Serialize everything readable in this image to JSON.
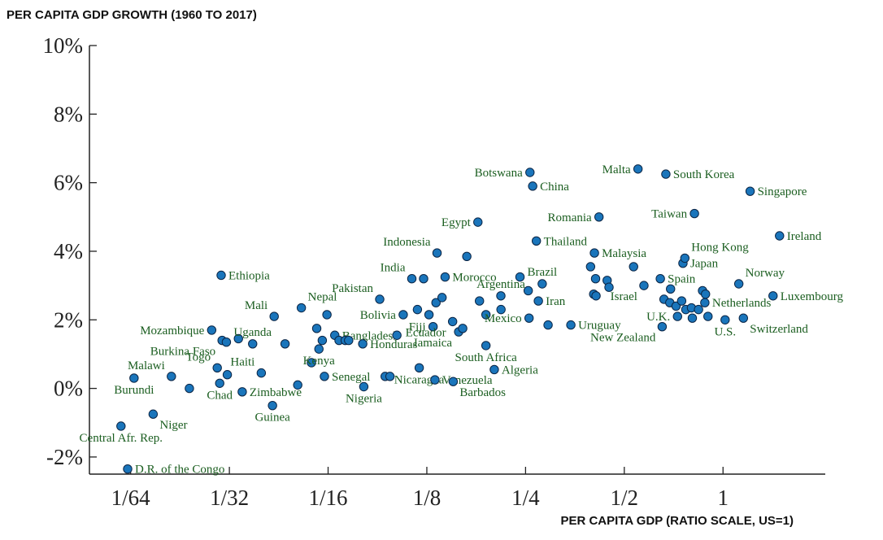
{
  "chart_data": {
    "type": "scatter",
    "title": "PER CAPITA GDP GROWTH (1960 TO 2017)",
    "xlabel": "PER CAPITA GDP (RATIO SCALE, US=1)",
    "ylabel": "",
    "x_scale": "log2",
    "xlim": [
      0.0117,
      2.05
    ],
    "ylim": [
      -2.5,
      10
    ],
    "x_ticks": [
      {
        "value": 0.015625,
        "label": "1/64"
      },
      {
        "value": 0.03125,
        "label": "1/32"
      },
      {
        "value": 0.0625,
        "label": "1/16"
      },
      {
        "value": 0.125,
        "label": "1/8"
      },
      {
        "value": 0.25,
        "label": "1/4"
      },
      {
        "value": 0.5,
        "label": "1/2"
      },
      {
        "value": 1,
        "label": "1"
      }
    ],
    "y_ticks": [
      {
        "value": -2,
        "label": "-2%"
      },
      {
        "value": 0,
        "label": "0%"
      },
      {
        "value": 2,
        "label": "2%"
      },
      {
        "value": 4,
        "label": "4%"
      },
      {
        "value": 6,
        "label": "6%"
      },
      {
        "value": 8,
        "label": "8%"
      },
      {
        "value": 10,
        "label": "10%"
      }
    ],
    "grid": false,
    "marker_color": "#1a75bb",
    "marker_edge_color": "#0b2545",
    "label_color": "#1b5e20",
    "points": [
      {
        "x": 0.0146,
        "y": -1.1,
        "label": "Central Afr. Rep.",
        "label_pos": "below"
      },
      {
        "x": 0.0153,
        "y": -2.35,
        "label": "D.R. of the Congo",
        "label_pos": "right"
      },
      {
        "x": 0.016,
        "y": 0.3,
        "label": "Burundi",
        "label_pos": "below"
      },
      {
        "x": 0.0183,
        "y": -0.75,
        "label": "Niger",
        "label_pos": "below-right"
      },
      {
        "x": 0.0208,
        "y": 0.35,
        "label": "Malawi",
        "label_pos": "above-left"
      },
      {
        "x": 0.0236,
        "y": 0.0,
        "label": "",
        "label_pos": ""
      },
      {
        "x": 0.0276,
        "y": 1.7,
        "label": "Mozambique",
        "label_pos": "left"
      },
      {
        "x": 0.0287,
        "y": 0.6,
        "label": "Togo",
        "label_pos": "above-left"
      },
      {
        "x": 0.0292,
        "y": 0.15,
        "label": "Chad",
        "label_pos": "below"
      },
      {
        "x": 0.0295,
        "y": 3.3,
        "label": "Ethiopia",
        "label_pos": "right"
      },
      {
        "x": 0.0297,
        "y": 1.4,
        "label": "Burkina Faso",
        "label_pos": "below-left"
      },
      {
        "x": 0.0306,
        "y": 1.35,
        "label": "",
        "label_pos": ""
      },
      {
        "x": 0.0308,
        "y": 0.4,
        "label": "",
        "label_pos": ""
      },
      {
        "x": 0.0333,
        "y": 1.45,
        "label": "",
        "label_pos": ""
      },
      {
        "x": 0.0342,
        "y": -0.1,
        "label": "Zimbabwe",
        "label_pos": "right"
      },
      {
        "x": 0.0368,
        "y": 1.3,
        "label": "Uganda",
        "label_pos": "above"
      },
      {
        "x": 0.0391,
        "y": 0.45,
        "label": "Haiti",
        "label_pos": "above-left"
      },
      {
        "x": 0.0423,
        "y": -0.5,
        "label": "Guinea",
        "label_pos": "below"
      },
      {
        "x": 0.0428,
        "y": 2.1,
        "label": "Mali",
        "label_pos": "above-left"
      },
      {
        "x": 0.0462,
        "y": 1.3,
        "label": "",
        "label_pos": ""
      },
      {
        "x": 0.0505,
        "y": 0.1,
        "label": "",
        "label_pos": ""
      },
      {
        "x": 0.0518,
        "y": 2.35,
        "label": "Nepal",
        "label_pos": "above-right"
      },
      {
        "x": 0.0556,
        "y": 0.75,
        "label": "",
        "label_pos": ""
      },
      {
        "x": 0.0577,
        "y": 1.75,
        "label": "",
        "label_pos": ""
      },
      {
        "x": 0.0586,
        "y": 1.15,
        "label": "Kenya",
        "label_pos": "below"
      },
      {
        "x": 0.06,
        "y": 1.4,
        "label": "",
        "label_pos": ""
      },
      {
        "x": 0.0609,
        "y": 0.35,
        "label": "Senegal",
        "label_pos": "right"
      },
      {
        "x": 0.062,
        "y": 2.15,
        "label": "",
        "label_pos": ""
      },
      {
        "x": 0.0655,
        "y": 1.55,
        "label": "Bangladesh",
        "label_pos": "right"
      },
      {
        "x": 0.0675,
        "y": 1.4,
        "label": "",
        "label_pos": ""
      },
      {
        "x": 0.0705,
        "y": 1.4,
        "label": "",
        "label_pos": ""
      },
      {
        "x": 0.0722,
        "y": 1.4,
        "label": "",
        "label_pos": ""
      },
      {
        "x": 0.0797,
        "y": 1.3,
        "label": "Honduras",
        "label_pos": "right"
      },
      {
        "x": 0.0803,
        "y": 0.05,
        "label": "Nigeria",
        "label_pos": "below"
      },
      {
        "x": 0.0898,
        "y": 2.6,
        "label": "Pakistan",
        "label_pos": "above-left"
      },
      {
        "x": 0.0933,
        "y": 0.35,
        "label": "",
        "label_pos": ""
      },
      {
        "x": 0.0965,
        "y": 0.35,
        "label": "",
        "label_pos": ""
      },
      {
        "x": 0.1013,
        "y": 1.55,
        "label": "",
        "label_pos": ""
      },
      {
        "x": 0.1059,
        "y": 2.15,
        "label": "Bolivia",
        "label_pos": "left"
      },
      {
        "x": 0.1125,
        "y": 3.2,
        "label": "India",
        "label_pos": "above-left"
      },
      {
        "x": 0.117,
        "y": 2.3,
        "label": "",
        "label_pos": ""
      },
      {
        "x": 0.1185,
        "y": 0.6,
        "label": "Nicaragua",
        "label_pos": "below"
      },
      {
        "x": 0.1222,
        "y": 3.2,
        "label": "",
        "label_pos": ""
      },
      {
        "x": 0.1269,
        "y": 2.15,
        "label": "",
        "label_pos": ""
      },
      {
        "x": 0.1306,
        "y": 1.8,
        "label": "Fiji",
        "label_pos": "left"
      },
      {
        "x": 0.1323,
        "y": 0.25,
        "label": "Venezuela",
        "label_pos": "right"
      },
      {
        "x": 0.1333,
        "y": 2.5,
        "label": "",
        "label_pos": ""
      },
      {
        "x": 0.1343,
        "y": 3.95,
        "label": "Indonesia",
        "label_pos": "above-left"
      },
      {
        "x": 0.1391,
        "y": 2.65,
        "label": "",
        "label_pos": ""
      },
      {
        "x": 0.1421,
        "y": 3.25,
        "label": "Morocco",
        "label_pos": "right"
      },
      {
        "x": 0.1498,
        "y": 1.95,
        "label": "Ecuador",
        "label_pos": "below-left"
      },
      {
        "x": 0.1504,
        "y": 0.2,
        "label": "Barbados",
        "label_pos": "below-right"
      },
      {
        "x": 0.1563,
        "y": 1.65,
        "label": "Jamaica",
        "label_pos": "below-left"
      },
      {
        "x": 0.1608,
        "y": 1.75,
        "label": "",
        "label_pos": ""
      },
      {
        "x": 0.1655,
        "y": 3.85,
        "label": "",
        "label_pos": ""
      },
      {
        "x": 0.1789,
        "y": 4.85,
        "label": "Egypt",
        "label_pos": "left"
      },
      {
        "x": 0.1809,
        "y": 2.55,
        "label": "",
        "label_pos": ""
      },
      {
        "x": 0.1893,
        "y": 1.25,
        "label": "South Africa",
        "label_pos": "below"
      },
      {
        "x": 0.1893,
        "y": 2.15,
        "label": "",
        "label_pos": ""
      },
      {
        "x": 0.2007,
        "y": 0.55,
        "label": "Algeria",
        "label_pos": "right"
      },
      {
        "x": 0.2104,
        "y": 2.3,
        "label": "",
        "label_pos": ""
      },
      {
        "x": 0.2102,
        "y": 2.7,
        "label": "Argentina",
        "label_pos": "above"
      },
      {
        "x": 0.2404,
        "y": 3.25,
        "label": "",
        "label_pos": ""
      },
      {
        "x": 0.2547,
        "y": 2.85,
        "label": "",
        "label_pos": ""
      },
      {
        "x": 0.2562,
        "y": 2.05,
        "label": "Mexico",
        "label_pos": "left"
      },
      {
        "x": 0.2578,
        "y": 6.3,
        "label": "Botswana",
        "label_pos": "left"
      },
      {
        "x": 0.2628,
        "y": 5.9,
        "label": "China",
        "label_pos": "right"
      },
      {
        "x": 0.2697,
        "y": 4.3,
        "label": "Thailand",
        "label_pos": "right"
      },
      {
        "x": 0.2735,
        "y": 2.55,
        "label": "Iran",
        "label_pos": "right"
      },
      {
        "x": 0.281,
        "y": 3.05,
        "label": "Brazil",
        "label_pos": "above"
      },
      {
        "x": 0.2928,
        "y": 1.85,
        "label": "",
        "label_pos": ""
      },
      {
        "x": 0.3436,
        "y": 1.85,
        "label": "Uruguay",
        "label_pos": "right"
      },
      {
        "x": 0.3946,
        "y": 3.55,
        "label": "",
        "label_pos": ""
      },
      {
        "x": 0.4033,
        "y": 2.75,
        "label": "",
        "label_pos": ""
      },
      {
        "x": 0.4054,
        "y": 3.95,
        "label": "Malaysia",
        "label_pos": "right"
      },
      {
        "x": 0.4087,
        "y": 3.2,
        "label": "",
        "label_pos": ""
      },
      {
        "x": 0.41,
        "y": 2.7,
        "label": "",
        "label_pos": ""
      },
      {
        "x": 0.4186,
        "y": 5.0,
        "label": "Romania",
        "label_pos": "left"
      },
      {
        "x": 0.4433,
        "y": 3.15,
        "label": "",
        "label_pos": ""
      },
      {
        "x": 0.4491,
        "y": 2.95,
        "label": "",
        "label_pos": ""
      },
      {
        "x": 0.5337,
        "y": 3.55,
        "label": "",
        "label_pos": ""
      },
      {
        "x": 0.5505,
        "y": 6.4,
        "label": "Malta",
        "label_pos": "left"
      },
      {
        "x": 0.5739,
        "y": 3.0,
        "label": "Israel",
        "label_pos": "below-left"
      },
      {
        "x": 0.6439,
        "y": 3.2,
        "label": "Spain",
        "label_pos": "right"
      },
      {
        "x": 0.6523,
        "y": 1.8,
        "label": "New Zealand",
        "label_pos": "below-left"
      },
      {
        "x": 0.6607,
        "y": 2.6,
        "label": "",
        "label_pos": ""
      },
      {
        "x": 0.6694,
        "y": 6.25,
        "label": "South Korea",
        "label_pos": "right"
      },
      {
        "x": 0.6919,
        "y": 2.9,
        "label": "",
        "label_pos": ""
      },
      {
        "x": 0.6883,
        "y": 2.5,
        "label": "",
        "label_pos": ""
      },
      {
        "x": 0.7192,
        "y": 2.4,
        "label": "",
        "label_pos": ""
      },
      {
        "x": 0.7265,
        "y": 2.1,
        "label": "U.K.",
        "label_pos": "left"
      },
      {
        "x": 0.7479,
        "y": 2.55,
        "label": "",
        "label_pos": ""
      },
      {
        "x": 0.7547,
        "y": 3.65,
        "label": "Japan",
        "label_pos": "right"
      },
      {
        "x": 0.7649,
        "y": 3.8,
        "label": "Hong Kong",
        "label_pos": "above-right"
      },
      {
        "x": 0.7699,
        "y": 2.3,
        "label": "",
        "label_pos": ""
      },
      {
        "x": 0.8013,
        "y": 2.35,
        "label": "",
        "label_pos": ""
      },
      {
        "x": 0.8061,
        "y": 2.05,
        "label": "",
        "label_pos": ""
      },
      {
        "x": 0.8182,
        "y": 5.1,
        "label": "Taiwan",
        "label_pos": "left"
      },
      {
        "x": 0.8421,
        "y": 2.3,
        "label": "",
        "label_pos": ""
      },
      {
        "x": 0.8661,
        "y": 2.85,
        "label": "",
        "label_pos": ""
      },
      {
        "x": 0.8801,
        "y": 2.5,
        "label": "Netherlands",
        "label_pos": "right"
      },
      {
        "x": 0.8844,
        "y": 2.75,
        "label": "",
        "label_pos": ""
      },
      {
        "x": 0.8998,
        "y": 2.1,
        "label": "",
        "label_pos": ""
      },
      {
        "x": 1.0147,
        "y": 2.0,
        "label": "U.S.",
        "label_pos": "below"
      },
      {
        "x": 1.1172,
        "y": 3.05,
        "label": "Norway",
        "label_pos": "above-right"
      },
      {
        "x": 1.1537,
        "y": 2.05,
        "label": "Switzerland",
        "label_pos": "below-right"
      },
      {
        "x": 1.2096,
        "y": 5.75,
        "label": "Singapore",
        "label_pos": "right"
      },
      {
        "x": 1.4206,
        "y": 2.7,
        "label": "Luxembourg",
        "label_pos": "right"
      },
      {
        "x": 1.4871,
        "y": 4.45,
        "label": "Ireland",
        "label_pos": "right"
      }
    ]
  }
}
